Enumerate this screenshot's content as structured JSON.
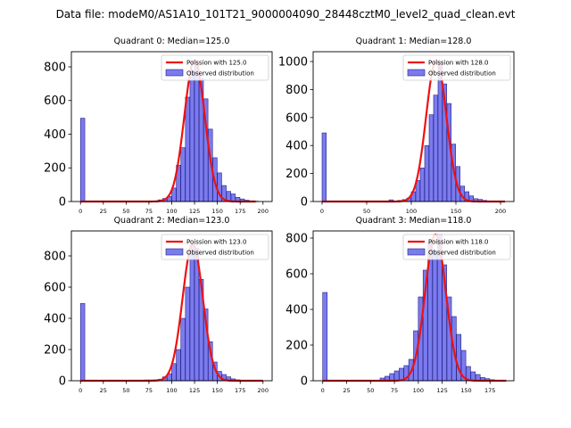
{
  "figure_title": "Data file: modeM0/AS1A10_101T21_9000004090_28448cztM0_level2_quad_clean.evt",
  "colors": {
    "bar_fill": "#7b7bee",
    "bar_edge": "#23238a",
    "curve": "#ee1111",
    "axes": "#000000"
  },
  "chart_data": [
    {
      "type": "bar",
      "title": "Quadrant 0: Median=125.0",
      "legend": {
        "placement": "top-right",
        "curve_label": "Poission with 125.0",
        "bars_label": "Observed distribution"
      },
      "median": 125.0,
      "xlim": [
        -10,
        210
      ],
      "ylim": [
        0,
        890
      ],
      "xticks": [
        0,
        25,
        50,
        75,
        100,
        125,
        150,
        175,
        200
      ],
      "yticks": [
        0,
        200,
        400,
        600,
        800
      ],
      "bins": [
        0,
        65,
        70,
        75,
        80,
        85,
        90,
        95,
        100,
        105,
        110,
        115,
        120,
        125,
        130,
        135,
        140,
        145,
        150,
        155,
        160,
        165,
        170,
        175,
        180,
        185,
        190
      ],
      "counts": [
        495,
        2,
        2,
        3,
        4,
        10,
        18,
        30,
        80,
        215,
        320,
        620,
        780,
        810,
        730,
        610,
        430,
        260,
        170,
        95,
        60,
        45,
        25,
        15,
        8,
        4,
        2
      ],
      "bin_width": 4.7,
      "curve": {
        "mean": 125.0,
        "peak": 840,
        "xmin": 0,
        "xmax": 192
      }
    },
    {
      "type": "bar",
      "title": "Quadrant 1: Median=128.0",
      "legend": {
        "placement": "top-right",
        "curve_label": "Poission with 128.0",
        "bars_label": "Observed distribution"
      },
      "median": 128.0,
      "xlim": [
        -10,
        215
      ],
      "ylim": [
        0,
        1070
      ],
      "xticks": [
        0,
        50,
        100,
        150,
        200
      ],
      "yticks": [
        0,
        200,
        400,
        600,
        800,
        1000
      ],
      "bins": [
        0,
        75,
        80,
        85,
        90,
        95,
        100,
        105,
        110,
        115,
        120,
        125,
        130,
        135,
        140,
        145,
        150,
        155,
        160,
        165,
        170,
        175,
        180,
        185,
        190,
        195
      ],
      "counts": [
        490,
        12,
        4,
        8,
        14,
        25,
        70,
        150,
        240,
        400,
        620,
        760,
        1000,
        840,
        700,
        410,
        250,
        110,
        70,
        40,
        20,
        15,
        8,
        4,
        2,
        1
      ],
      "bin_width": 4.7,
      "curve": {
        "mean": 128.0,
        "peak": 1010,
        "xmin": 0,
        "xmax": 205
      }
    },
    {
      "type": "bar",
      "title": "Quadrant 2: Median=123.0",
      "legend": {
        "placement": "top-right",
        "curve_label": "Poission with 123.0",
        "bars_label": "Observed distribution"
      },
      "median": 123.0,
      "xlim": [
        -10,
        210
      ],
      "ylim": [
        0,
        960
      ],
      "xticks": [
        0,
        25,
        50,
        75,
        100,
        125,
        150,
        175,
        200
      ],
      "yticks": [
        0,
        200,
        400,
        600,
        800
      ],
      "bins": [
        0,
        70,
        75,
        80,
        85,
        90,
        95,
        100,
        105,
        110,
        115,
        120,
        125,
        130,
        135,
        140,
        145,
        150,
        155,
        160,
        165,
        170,
        175,
        180,
        185
      ],
      "counts": [
        495,
        5,
        5,
        6,
        10,
        25,
        45,
        110,
        200,
        400,
        600,
        870,
        850,
        650,
        460,
        250,
        120,
        60,
        40,
        25,
        12,
        6,
        4,
        2,
        1
      ],
      "bin_width": 4.7,
      "curve": {
        "mean": 123.0,
        "peak": 875,
        "xmin": 0,
        "xmax": 200
      }
    },
    {
      "type": "bar",
      "title": "Quadrant 3: Median=118.0",
      "legend": {
        "placement": "top-right",
        "curve_label": "Poission with 118.0",
        "bars_label": "Observed distribution"
      },
      "median": 118.0,
      "xlim": [
        -10,
        200
      ],
      "ylim": [
        0,
        840
      ],
      "xticks": [
        0,
        25,
        50,
        75,
        100,
        125,
        150,
        175
      ],
      "yticks": [
        0,
        200,
        400,
        600,
        800
      ],
      "bins": [
        0,
        60,
        65,
        70,
        75,
        80,
        85,
        90,
        95,
        100,
        105,
        110,
        115,
        120,
        125,
        130,
        135,
        140,
        145,
        150,
        155,
        160,
        165,
        170,
        175,
        180
      ],
      "counts": [
        495,
        15,
        25,
        40,
        55,
        70,
        85,
        120,
        280,
        470,
        620,
        780,
        730,
        820,
        650,
        470,
        360,
        260,
        170,
        80,
        50,
        35,
        18,
        12,
        6,
        3
      ],
      "bin_width": 4.7,
      "curve": {
        "mean": 118.0,
        "peak": 820,
        "xmin": 0,
        "xmax": 192
      }
    }
  ]
}
